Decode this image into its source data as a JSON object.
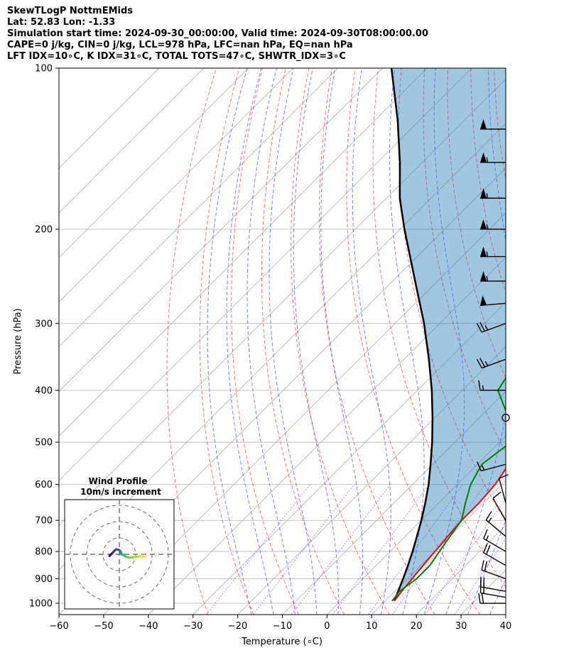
{
  "header": {
    "line1": "SkewTLogP NottmEMids",
    "line2": "Lat: 52.83   Lon: -1.33",
    "line3": "Simulation start time: 2024-09-30_00:00:00, Valid time: 2024-09-30T08:00:00.00",
    "line4": "CAPE=0 j/kg, CIN=0 j/kg, LCL=978 hPa, LFC=nan hPa, EQ=nan hPa",
    "line5": "LFT IDX=10∘C, K IDX=31∘C, TOTAL TOTS=47∘C, SHWTR_IDX=3∘C"
  },
  "chart_data": {
    "type": "line",
    "title": "SkewTLogP NottmEMids",
    "xlabel": "Temperature (∘C)",
    "ylabel": "Pressure (hPa)",
    "xlim": [
      -60,
      40
    ],
    "ylim": [
      1050,
      100
    ],
    "y_scale": "log",
    "x_ticks": [
      "−60",
      "−50",
      "−40",
      "−30",
      "−20",
      "−10",
      "0",
      "10",
      "20",
      "30",
      "40"
    ],
    "y_ticks": [
      "100",
      "200",
      "300",
      "400",
      "500",
      "600",
      "700",
      "800",
      "900",
      "1000"
    ],
    "grid": true,
    "series": [
      {
        "name": "temperature",
        "color": "#ff0000",
        "points": [
          [
            12,
            990
          ],
          [
            11.5,
            950
          ],
          [
            11,
            900
          ],
          [
            10.5,
            850
          ],
          [
            10,
            800
          ],
          [
            9.5,
            750
          ],
          [
            9,
            700
          ],
          [
            9,
            650
          ],
          [
            8.5,
            600
          ],
          [
            7,
            550
          ],
          [
            4,
            500
          ],
          [
            1,
            450
          ],
          [
            -4,
            400
          ],
          [
            -10.5,
            350
          ],
          [
            -16.5,
            300
          ],
          [
            -21,
            270
          ],
          [
            -21,
            250
          ],
          [
            -21,
            225
          ],
          [
            -20.5,
            200
          ],
          [
            -19.5,
            175
          ],
          [
            -18.5,
            150
          ],
          [
            -19,
            130
          ],
          [
            -20,
            115
          ],
          [
            -21,
            100
          ]
        ]
      },
      {
        "name": "dewpoint",
        "color": "#008000",
        "points": [
          [
            11.5,
            990
          ],
          [
            11,
            950
          ],
          [
            12,
            900
          ],
          [
            12,
            850
          ],
          [
            11,
            800
          ],
          [
            10,
            750
          ],
          [
            9,
            700
          ],
          [
            6,
            650
          ],
          [
            3,
            600
          ],
          [
            1,
            550
          ],
          [
            2.5,
            500
          ],
          [
            -3.5,
            450
          ],
          [
            -12,
            400
          ],
          [
            -14.5,
            350
          ],
          [
            -18.5,
            300
          ],
          [
            -24,
            250
          ],
          [
            -30,
            200
          ],
          [
            -40,
            175
          ],
          [
            -44,
            160
          ],
          [
            -48,
            140
          ],
          [
            -54,
            120
          ],
          [
            -58,
            100
          ]
        ]
      },
      {
        "name": "parcel",
        "color": "#000000",
        "points": [
          [
            12,
            990
          ],
          [
            10.7,
            950
          ],
          [
            9,
            900
          ],
          [
            7.1,
            850
          ],
          [
            5,
            800
          ],
          [
            2.6,
            750
          ],
          [
            0,
            700
          ],
          [
            -3,
            650
          ],
          [
            -6.4,
            600
          ],
          [
            -10.5,
            550
          ],
          [
            -15.1,
            500
          ],
          [
            -20.5,
            450
          ],
          [
            -26.8,
            400
          ],
          [
            -34.4,
            350
          ],
          [
            -43.5,
            300
          ],
          [
            -55,
            250
          ],
          [
            -69,
            200
          ],
          [
            -77,
            175
          ],
          [
            -85,
            150
          ],
          [
            -95,
            125
          ],
          [
            -108,
            100
          ]
        ]
      }
    ],
    "wind_barbs": {
      "pressures": [
        130,
        150,
        175,
        200,
        225,
        250,
        275,
        300,
        350,
        400,
        450,
        550,
        650,
        700,
        750,
        800,
        850,
        900,
        950,
        975,
        1000
      ],
      "speeds_kt": [
        50,
        55,
        55,
        55,
        55,
        55,
        50,
        25,
        25,
        15,
        0,
        15,
        10,
        10,
        15,
        15,
        20,
        20,
        20,
        20,
        20
      ],
      "directions_deg": [
        270,
        270,
        270,
        270,
        270,
        270,
        265,
        250,
        250,
        270,
        0,
        255,
        345,
        330,
        310,
        300,
        300,
        290,
        280,
        280,
        270
      ]
    },
    "inset": {
      "title": "Wind Profile",
      "subtitle": "10m/s increment",
      "type": "hodograph",
      "colormap": "viridis",
      "points": [
        [
          -6,
          -1
        ],
        [
          -5,
          0
        ],
        [
          -4,
          1
        ],
        [
          -3,
          2.2
        ],
        [
          -2,
          3
        ],
        [
          -0.5,
          2.8
        ],
        [
          0.5,
          2
        ],
        [
          1,
          1.3
        ],
        [
          0.5,
          0.6
        ],
        [
          1.5,
          0
        ],
        [
          2.5,
          -0.5
        ],
        [
          3.3,
          -1
        ],
        [
          4,
          -1.6
        ],
        [
          6,
          -2
        ],
        [
          9,
          -1.8
        ],
        [
          12,
          -1.3
        ],
        [
          14,
          -1.4
        ],
        [
          16,
          -1.5
        ]
      ]
    }
  }
}
